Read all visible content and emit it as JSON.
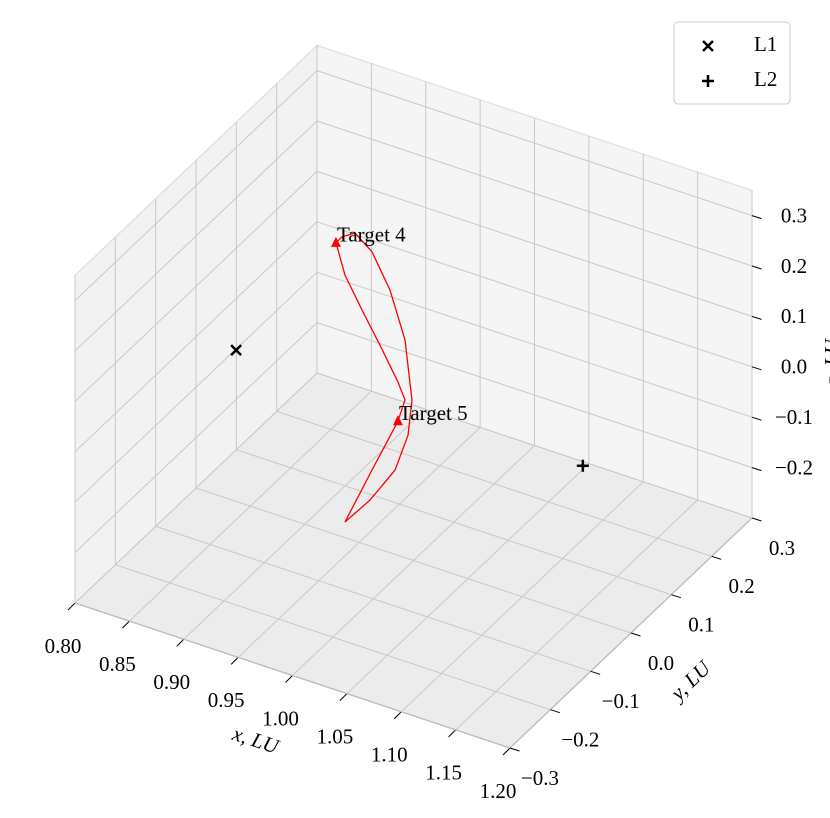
{
  "chart_data": {
    "type": "line3d",
    "xlabel": "x, LU",
    "ylabel": "y, LU",
    "zlabel": "z, LU",
    "xlim": [
      0.8,
      1.2
    ],
    "ylim": [
      -0.3,
      0.3
    ],
    "zlim": [
      -0.3,
      0.35
    ],
    "xticks": [
      {
        "value": 0.8,
        "label": "0.80"
      },
      0.85,
      {
        "value": 0.9,
        "label": "0.90"
      },
      0.95,
      {
        "value": 1.0,
        "label": "1.00"
      },
      1.05,
      {
        "value": 1.1,
        "label": "1.10"
      },
      1.15,
      {
        "value": 1.2,
        "label": "1.20"
      }
    ],
    "yticks": [
      {
        "value": -0.3,
        "label": "−0.3"
      },
      {
        "value": -0.2,
        "label": "−0.2"
      },
      {
        "value": -0.1,
        "label": "−0.1"
      },
      {
        "value": 0.0,
        "label": "0.0"
      },
      0.1,
      0.2,
      0.3
    ],
    "zticks": [
      {
        "value": -0.2,
        "label": "−0.2"
      },
      {
        "value": -0.1,
        "label": "−0.1"
      },
      {
        "value": 0.0,
        "label": "0.0"
      },
      0.1,
      0.2,
      0.3
    ],
    "grid": true,
    "legend": "upper right",
    "series": [
      {
        "color": "#ff0000",
        "x": [
          0.9857,
          0.9618,
          0.937,
          0.96,
          0.983,
          0.9949,
          0.9986,
          0.9922,
          0.9784,
          0.9618,
          0.9462,
          0.9343,
          0.9287,
          0.937,
          0.9526,
          0.9692,
          0.9857,
          0.9922,
          0.9857
        ],
        "y": [
          0,
          0,
          0,
          0,
          0,
          0,
          0,
          0,
          0,
          0,
          0,
          0,
          0,
          0,
          0,
          0,
          0,
          0,
          0
        ],
        "z": [
          -0.034,
          -0.148,
          -0.269,
          -0.209,
          -0.133,
          -0.055,
          0.017,
          0.132,
          0.221,
          0.285,
          0.311,
          0.295,
          0.279,
          0.221,
          0.163,
          0.105,
          0.044,
          0.013,
          -0.034
        ]
      },
      {
        "name": "L1",
        "marker": "x",
        "color": "#000000",
        "x": [
          0.8369
        ],
        "y": [
          0
        ],
        "z": [
          0
        ]
      },
      {
        "name": "L2",
        "marker": "+",
        "color": "#000000",
        "x": [
          1.1557
        ],
        "y": [
          0
        ],
        "z": [
          0
        ]
      }
    ],
    "annotations": [
      {
        "text": "Target 4",
        "color": "#ff0000",
        "x": 0.9287,
        "y": 0,
        "z": 0.279
      },
      {
        "text": "Target 5",
        "color": "#ff0000",
        "x": 0.9857,
        "y": 0,
        "z": -0.034
      }
    ]
  }
}
